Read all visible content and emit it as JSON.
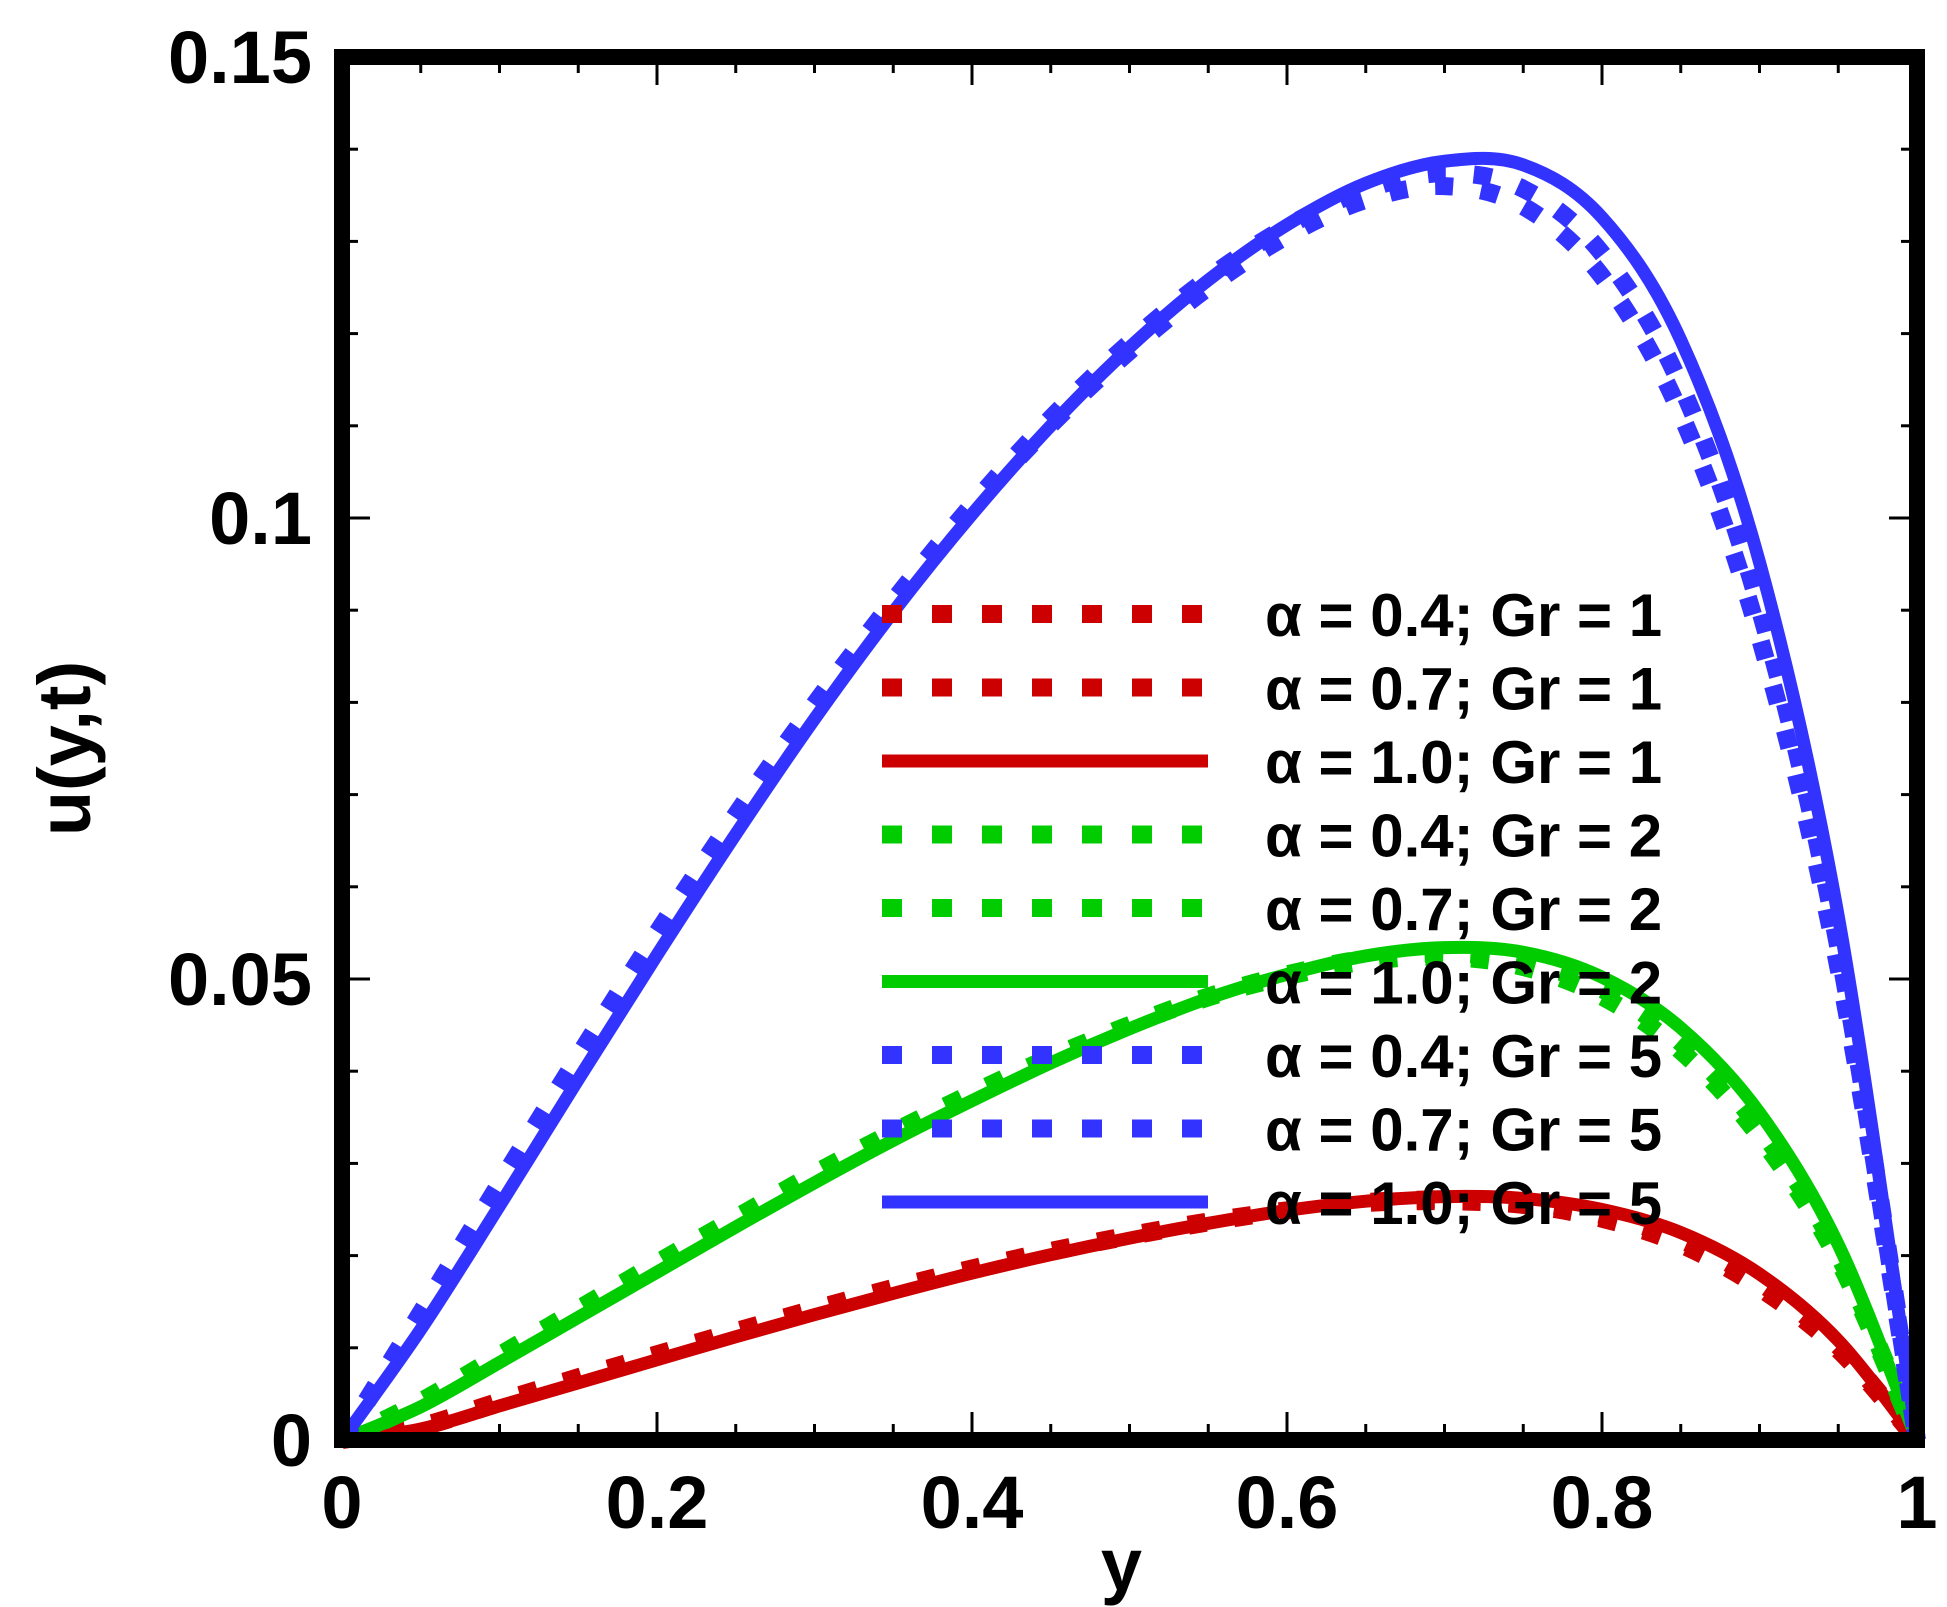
{
  "chart_data": {
    "type": "line",
    "title": "",
    "xlabel": "y",
    "ylabel": "u(y,t)",
    "xlim": [
      0,
      1
    ],
    "ylim": [
      0,
      0.15
    ],
    "xticks": [
      0,
      0.2,
      0.4,
      0.6,
      0.8,
      1
    ],
    "xtick_labels": [
      "0",
      "0.2",
      "0.4",
      "0.6",
      "0.8",
      "1"
    ],
    "yticks": [
      0,
      0.05,
      0.1,
      0.15
    ],
    "ytick_labels": [
      "0",
      "0.05",
      "0.1",
      "0.15"
    ],
    "legend_position": "center-right",
    "x": [
      0,
      0.05,
      0.1,
      0.15,
      0.2,
      0.25,
      0.3,
      0.35,
      0.4,
      0.45,
      0.5,
      0.55,
      0.6,
      0.65,
      0.7,
      0.75,
      0.8,
      0.85,
      0.9,
      0.95,
      1.0
    ],
    "series": [
      {
        "name": "α = 0.4; Gr = 1",
        "color": "#cc0000",
        "style": "dotted",
        "values": [
          0,
          0.0015,
          0.0042,
          0.0068,
          0.0093,
          0.0118,
          0.0142,
          0.0165,
          0.0186,
          0.0205,
          0.0222,
          0.0237,
          0.0249,
          0.0257,
          0.0259,
          0.0255,
          0.024,
          0.0212,
          0.0165,
          0.0098,
          0
        ]
      },
      {
        "name": "α = 0.7; Gr = 1",
        "color": "#cc0000",
        "style": "dotted",
        "values": [
          0,
          0.0014,
          0.004,
          0.0066,
          0.0091,
          0.0116,
          0.014,
          0.0163,
          0.0184,
          0.0204,
          0.0221,
          0.0236,
          0.0249,
          0.0258,
          0.0261,
          0.0258,
          0.0244,
          0.0217,
          0.0171,
          0.0102,
          0
        ]
      },
      {
        "name": "α = 1.0; Gr = 1",
        "color": "#cc0000",
        "style": "solid",
        "values": [
          0,
          0.0012,
          0.0037,
          0.0062,
          0.0087,
          0.0112,
          0.0136,
          0.0159,
          0.0181,
          0.0201,
          0.0219,
          0.0235,
          0.0249,
          0.0259,
          0.0264,
          0.0262,
          0.025,
          0.0225,
          0.018,
          0.0108,
          0
        ]
      },
      {
        "name": "α = 0.4; Gr = 2",
        "color": "#00cc00",
        "style": "dotted",
        "values": [
          0,
          0.0042,
          0.0092,
          0.0142,
          0.0192,
          0.0241,
          0.0289,
          0.0334,
          0.0376,
          0.0415,
          0.045,
          0.048,
          0.0503,
          0.0519,
          0.0524,
          0.0513,
          0.0481,
          0.0422,
          0.0329,
          0.0195,
          0
        ]
      },
      {
        "name": "α = 0.7; Gr = 2",
        "color": "#00cc00",
        "style": "dotted",
        "values": [
          0,
          0.004,
          0.0089,
          0.0139,
          0.0189,
          0.0238,
          0.0286,
          0.0332,
          0.0374,
          0.0414,
          0.045,
          0.0481,
          0.0505,
          0.0522,
          0.0528,
          0.0519,
          0.0489,
          0.0431,
          0.0338,
          0.0201,
          0
        ]
      },
      {
        "name": "α = 1.0; Gr = 2",
        "color": "#00cc00",
        "style": "solid",
        "values": [
          0,
          0.0036,
          0.0084,
          0.0133,
          0.0182,
          0.0231,
          0.0279,
          0.0325,
          0.0368,
          0.0409,
          0.0446,
          0.0479,
          0.0505,
          0.0525,
          0.0534,
          0.0529,
          0.0502,
          0.0447,
          0.0355,
          0.0212,
          0
        ]
      },
      {
        "name": "α = 0.4; Gr = 5",
        "color": "#3333ff",
        "style": "dotted",
        "values": [
          0,
          0.0138,
          0.0278,
          0.0416,
          0.055,
          0.0678,
          0.0798,
          0.0909,
          0.101,
          0.1101,
          0.1181,
          0.125,
          0.1306,
          0.1345,
          0.136,
          0.1338,
          0.1262,
          0.1113,
          0.0871,
          0.0513,
          0
        ]
      },
      {
        "name": "α = 0.7; Gr = 5",
        "color": "#3333ff",
        "style": "dotted",
        "values": [
          0,
          0.0132,
          0.027,
          0.0408,
          0.0543,
          0.0673,
          0.0796,
          0.091,
          0.1014,
          0.1108,
          0.119,
          0.126,
          0.1316,
          0.1356,
          0.1374,
          0.1357,
          0.1287,
          0.1144,
          0.0902,
          0.0535,
          0
        ]
      },
      {
        "name": "α = 1.0; Gr = 5",
        "color": "#3333ff",
        "style": "solid",
        "values": [
          0,
          0.012,
          0.0254,
          0.0391,
          0.0526,
          0.0657,
          0.0782,
          0.0898,
          0.1004,
          0.11,
          0.1185,
          0.1258,
          0.1318,
          0.1363,
          0.1387,
          0.1383,
          0.1326,
          0.1193,
          0.0952,
          0.0568,
          0
        ]
      }
    ]
  }
}
